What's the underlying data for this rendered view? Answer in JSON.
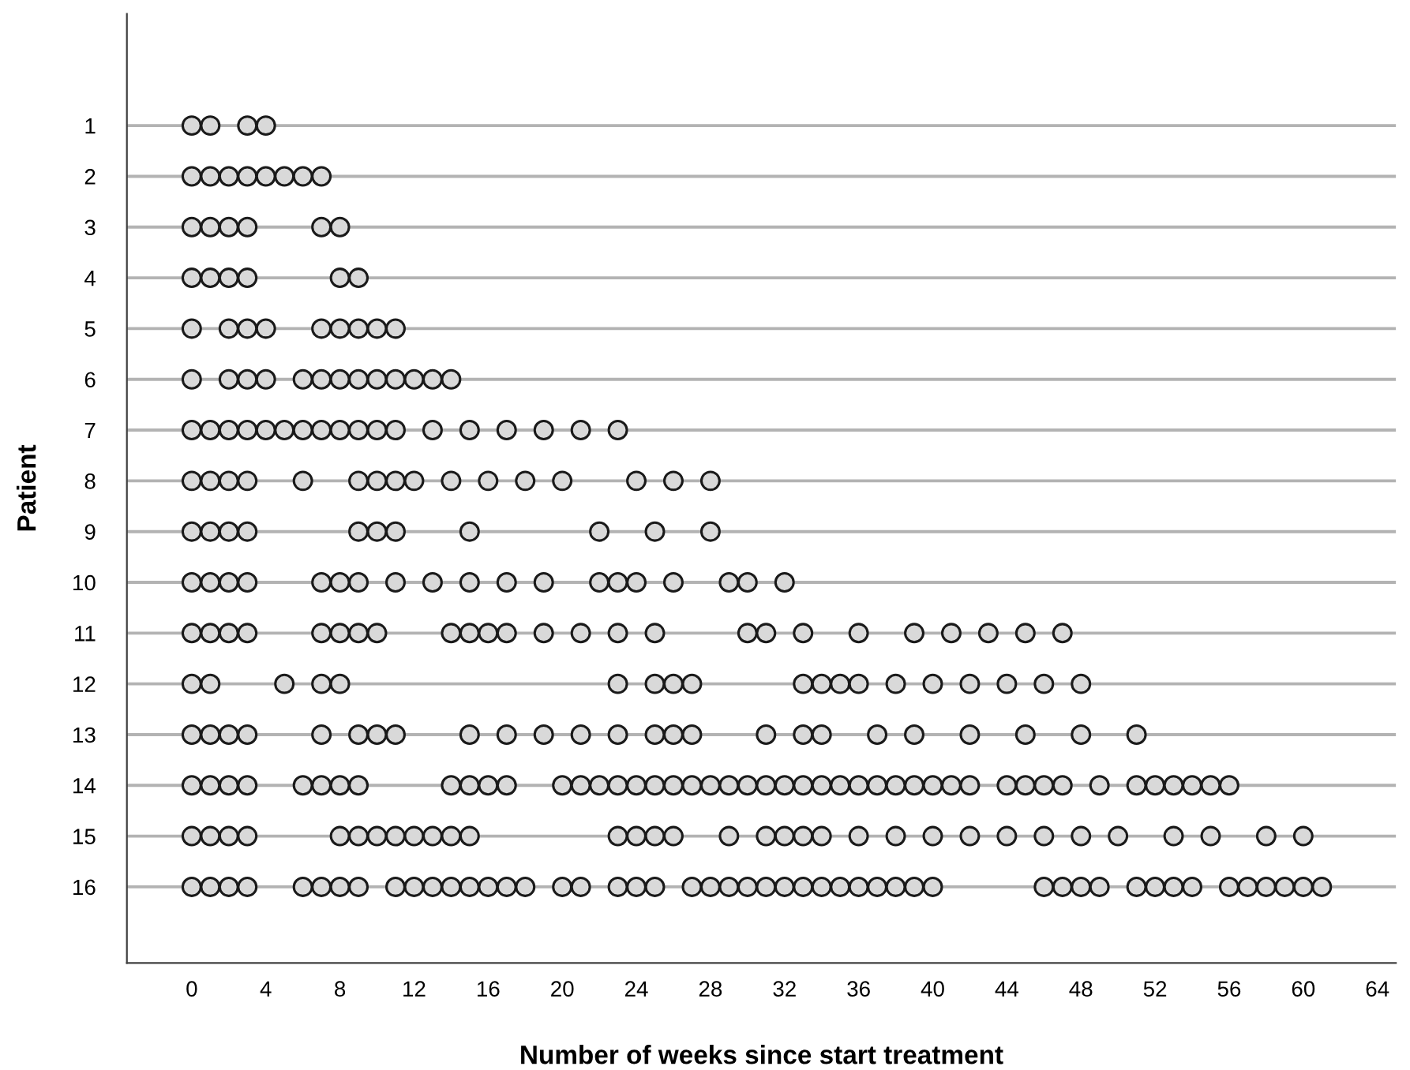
{
  "chart_data": {
    "type": "scatter",
    "xlabel": "Number of weeks since start treatment",
    "ylabel": "Patient",
    "xlim": [
      -3.5,
      65
    ],
    "xticks": [
      0,
      4,
      8,
      12,
      16,
      20,
      24,
      28,
      32,
      36,
      40,
      44,
      48,
      52,
      56,
      60,
      64
    ],
    "ylim": [
      17.5,
      -1.2
    ],
    "yticks": [
      1,
      2,
      3,
      4,
      5,
      6,
      7,
      8,
      9,
      10,
      11,
      12,
      13,
      14,
      15,
      16
    ],
    "grid": "y",
    "marker": "circle",
    "series": [
      {
        "color": "#d9d9d9",
        "x": [
          0,
          1,
          3,
          4
        ],
        "values": [
          1,
          1,
          1,
          1
        ]
      },
      {
        "color": "#d9d9d9",
        "x": [
          0,
          1,
          2,
          3,
          4,
          5,
          6,
          7
        ],
        "values": [
          2,
          2,
          2,
          2,
          2,
          2,
          2,
          2
        ]
      },
      {
        "color": "#d9d9d9",
        "x": [
          0,
          1,
          2,
          3,
          7,
          8
        ],
        "values": [
          3,
          3,
          3,
          3,
          3,
          3
        ]
      },
      {
        "color": "#d9d9d9",
        "x": [
          0,
          1,
          2,
          3,
          8,
          9
        ],
        "values": [
          4,
          4,
          4,
          4,
          4,
          4
        ]
      },
      {
        "color": "#d9d9d9",
        "x": [
          0,
          2,
          3,
          4,
          7,
          8,
          9,
          10,
          11
        ],
        "values": [
          5,
          5,
          5,
          5,
          5,
          5,
          5,
          5,
          5
        ]
      },
      {
        "color": "#d9d9d9",
        "x": [
          0,
          2,
          3,
          4,
          6,
          7,
          8,
          9,
          10,
          11,
          12,
          13,
          14
        ],
        "values": [
          6,
          6,
          6,
          6,
          6,
          6,
          6,
          6,
          6,
          6,
          6,
          6,
          6
        ]
      },
      {
        "color": "#d9d9d9",
        "x": [
          0,
          1,
          2,
          3,
          4,
          5,
          6,
          7,
          8,
          9,
          10,
          11,
          13,
          15,
          17,
          19,
          21,
          23
        ],
        "values": [
          7,
          7,
          7,
          7,
          7,
          7,
          7,
          7,
          7,
          7,
          7,
          7,
          7,
          7,
          7,
          7,
          7,
          7
        ]
      },
      {
        "color": "#d9d9d9",
        "x": [
          0,
          1,
          2,
          3,
          6,
          9,
          10,
          11,
          12,
          14,
          16,
          18,
          20,
          24,
          26,
          28
        ],
        "values": [
          8,
          8,
          8,
          8,
          8,
          8,
          8,
          8,
          8,
          8,
          8,
          8,
          8,
          8,
          8,
          8
        ]
      },
      {
        "color": "#d9d9d9",
        "x": [
          0,
          1,
          2,
          3,
          9,
          10,
          11,
          15,
          22,
          25,
          28
        ],
        "values": [
          9,
          9,
          9,
          9,
          9,
          9,
          9,
          9,
          9,
          9,
          9
        ]
      },
      {
        "color": "#d9d9d9",
        "x": [
          0,
          1,
          2,
          3,
          7,
          8,
          9,
          11,
          13,
          15,
          17,
          19,
          22,
          23,
          24,
          26,
          29,
          30,
          32
        ],
        "values": [
          10,
          10,
          10,
          10,
          10,
          10,
          10,
          10,
          10,
          10,
          10,
          10,
          10,
          10,
          10,
          10,
          10,
          10,
          10
        ]
      },
      {
        "color": "#d9d9d9",
        "x": [
          0,
          1,
          2,
          3,
          7,
          8,
          9,
          10,
          14,
          15,
          16,
          17,
          19,
          21,
          23,
          25,
          30,
          31,
          33,
          36,
          39,
          41,
          43,
          45,
          47
        ],
        "values": [
          11,
          11,
          11,
          11,
          11,
          11,
          11,
          11,
          11,
          11,
          11,
          11,
          11,
          11,
          11,
          11,
          11,
          11,
          11,
          11,
          11,
          11,
          11,
          11,
          11
        ]
      },
      {
        "color": "#d9d9d9",
        "x": [
          0,
          1,
          5,
          7,
          8,
          23,
          25,
          26,
          27,
          33,
          34,
          35,
          36,
          38,
          40,
          42,
          44,
          46,
          48
        ],
        "values": [
          12,
          12,
          12,
          12,
          12,
          12,
          12,
          12,
          12,
          12,
          12,
          12,
          12,
          12,
          12,
          12,
          12,
          12,
          12
        ]
      },
      {
        "color": "#d9d9d9",
        "x": [
          0,
          1,
          2,
          3,
          7,
          9,
          10,
          11,
          15,
          17,
          19,
          21,
          23,
          25,
          26,
          27,
          31,
          33,
          34,
          37,
          39,
          42,
          45,
          48,
          51
        ],
        "values": [
          13,
          13,
          13,
          13,
          13,
          13,
          13,
          13,
          13,
          13,
          13,
          13,
          13,
          13,
          13,
          13,
          13,
          13,
          13,
          13,
          13,
          13,
          13,
          13,
          13
        ]
      },
      {
        "color": "#d9d9d9",
        "x": [
          0,
          1,
          2,
          3,
          6,
          7,
          8,
          9,
          14,
          15,
          16,
          17,
          20,
          21,
          22,
          23,
          24,
          25,
          26,
          27,
          28,
          29,
          30,
          31,
          32,
          33,
          34,
          35,
          36,
          37,
          38,
          39,
          40,
          41,
          42,
          44,
          45,
          46,
          47,
          49,
          51,
          52,
          53,
          54,
          55,
          56
        ],
        "values": [
          14,
          14,
          14,
          14,
          14,
          14,
          14,
          14,
          14,
          14,
          14,
          14,
          14,
          14,
          14,
          14,
          14,
          14,
          14,
          14,
          14,
          14,
          14,
          14,
          14,
          14,
          14,
          14,
          14,
          14,
          14,
          14,
          14,
          14,
          14,
          14,
          14,
          14,
          14,
          14,
          14,
          14,
          14,
          14,
          14,
          14
        ]
      },
      {
        "color": "#d9d9d9",
        "x": [
          0,
          1,
          2,
          3,
          8,
          9,
          10,
          11,
          12,
          13,
          14,
          15,
          23,
          24,
          25,
          26,
          29,
          31,
          32,
          33,
          34,
          36,
          38,
          40,
          42,
          44,
          46,
          48,
          50,
          53,
          55,
          58,
          60
        ],
        "values": [
          15,
          15,
          15,
          15,
          15,
          15,
          15,
          15,
          15,
          15,
          15,
          15,
          15,
          15,
          15,
          15,
          15,
          15,
          15,
          15,
          15,
          15,
          15,
          15,
          15,
          15,
          15,
          15,
          15,
          15,
          15,
          15,
          15
        ]
      },
      {
        "color": "#d9d9d9",
        "x": [
          0,
          1,
          2,
          3,
          6,
          7,
          8,
          9,
          11,
          12,
          13,
          14,
          15,
          16,
          17,
          18,
          20,
          21,
          23,
          24,
          25,
          27,
          28,
          29,
          30,
          31,
          32,
          33,
          34,
          35,
          36,
          37,
          38,
          39,
          40,
          46,
          47,
          48,
          49,
          51,
          52,
          53,
          54,
          56,
          57,
          58,
          59,
          60,
          61
        ],
        "values": [
          16,
          16,
          16,
          16,
          16,
          16,
          16,
          16,
          16,
          16,
          16,
          16,
          16,
          16,
          16,
          16,
          16,
          16,
          16,
          16,
          16,
          16,
          16,
          16,
          16,
          16,
          16,
          16,
          16,
          16,
          16,
          16,
          16,
          16,
          16,
          16,
          16,
          16,
          16,
          16,
          16,
          16,
          16,
          16,
          16,
          16,
          16,
          16,
          16
        ]
      }
    ]
  }
}
